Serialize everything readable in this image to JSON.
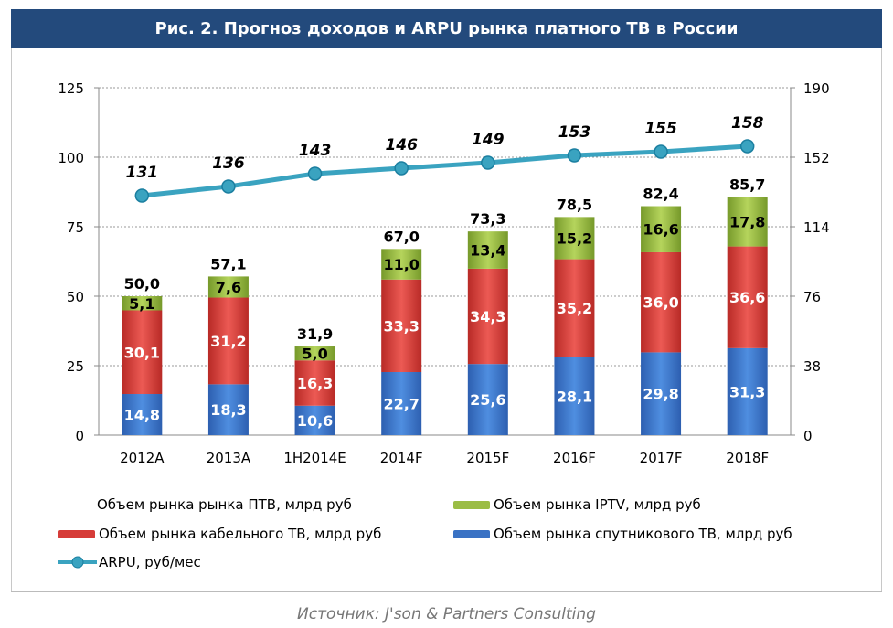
{
  "title": "Рис. 2. Прогноз доходов и ARPU рынка платного ТВ в России",
  "source": "Источник: J'son & Partners Consulting",
  "chart_data": {
    "type": "bar",
    "stacked": true,
    "categories": [
      "2012A",
      "2013A",
      "1H2014E",
      "2014F",
      "2015F",
      "2016F",
      "2017F",
      "2018F"
    ],
    "left_axis": {
      "ylim": [
        0,
        125
      ],
      "ticks": [
        "0",
        "25",
        "50",
        "75",
        "100",
        "125"
      ]
    },
    "right_axis": {
      "ylim": [
        0,
        190
      ],
      "ticks": [
        "0",
        "38",
        "76",
        "114",
        "152",
        "190"
      ]
    },
    "series": [
      {
        "name": "Объем рынка спутникового ТВ, млрд руб",
        "color": "#3a72c4",
        "values": [
          14.8,
          18.3,
          10.6,
          22.7,
          25.6,
          28.1,
          29.8,
          31.3
        ],
        "labels": [
          "14,8",
          "18,3",
          "10,6",
          "22,7",
          "25,6",
          "28,1",
          "29,8",
          "31,3"
        ]
      },
      {
        "name": "Объем рынка кабельного ТВ, млрд руб",
        "color": "#d63c38",
        "values": [
          30.1,
          31.2,
          16.3,
          33.3,
          34.3,
          35.2,
          36.0,
          36.6
        ],
        "labels": [
          "30,1",
          "31,2",
          "16,3",
          "33,3",
          "34,3",
          "35,2",
          "36,0",
          "36,6"
        ]
      },
      {
        "name": "Объем рынка IPTV, млрд руб",
        "color": "#8fb23a",
        "values": [
          5.1,
          7.6,
          5.0,
          11.0,
          13.4,
          15.2,
          16.6,
          17.8
        ],
        "labels": [
          "5,1",
          "7,6",
          "5,0",
          "11,0",
          "13,4",
          "15,2",
          "16,6",
          "17,8"
        ]
      }
    ],
    "totals": {
      "name": "Объем рынка рынка ПТВ, млрд руб",
      "values": [
        50.0,
        57.1,
        31.9,
        67.0,
        73.3,
        78.5,
        82.4,
        85.7
      ],
      "labels": [
        "50,0",
        "57,1",
        "31,9",
        "67,0",
        "73,3",
        "78,5",
        "82,4",
        "85,7"
      ]
    },
    "line": {
      "name": "ARPU, руб/мес",
      "axis": "right",
      "color": "#3aa3c0",
      "values": [
        131,
        136,
        143,
        146,
        149,
        153,
        155,
        158
      ],
      "labels": [
        "131",
        "136",
        "143",
        "146",
        "149",
        "153",
        "155",
        "158"
      ]
    }
  }
}
